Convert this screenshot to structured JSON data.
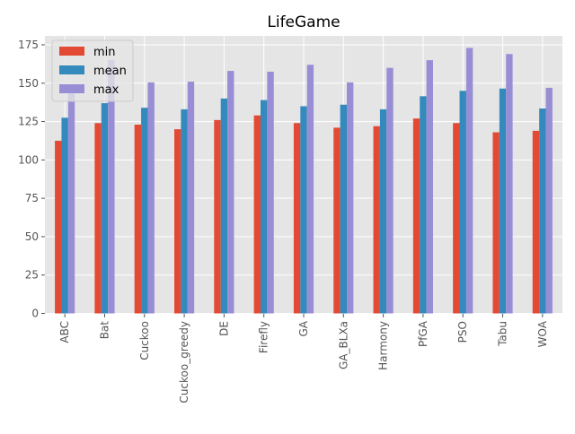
{
  "chart_data": {
    "type": "bar",
    "title": "LifeGame",
    "xlabel": "",
    "ylabel": "",
    "ylim": [
      0,
      180
    ],
    "yticks": [
      0,
      25,
      50,
      75,
      100,
      125,
      150,
      175
    ],
    "grid": true,
    "legend_position": "top-left",
    "categories": [
      "ABC",
      "Bat",
      "Cuckoo",
      "Cuckoo_greedy",
      "DE",
      "Firefly",
      "GA",
      "GA_BLXa",
      "Harmony",
      "PfGA",
      "PSO",
      "Tabu",
      "WOA"
    ],
    "series": [
      {
        "name": "min",
        "color": "#E24A33",
        "values": [
          112.5,
          124,
          123,
          120,
          126,
          129,
          124,
          121,
          122,
          127,
          124,
          118,
          119
        ]
      },
      {
        "name": "mean",
        "color": "#348ABD",
        "values": [
          127.5,
          137,
          134,
          133,
          140,
          139,
          135,
          136,
          133,
          141.5,
          145,
          146.5,
          133.5
        ]
      },
      {
        "name": "max",
        "color": "#988ED5",
        "values": [
          145,
          165,
          150.5,
          151,
          158,
          157.5,
          162,
          150.5,
          160,
          165,
          173,
          169,
          147
        ]
      }
    ]
  }
}
